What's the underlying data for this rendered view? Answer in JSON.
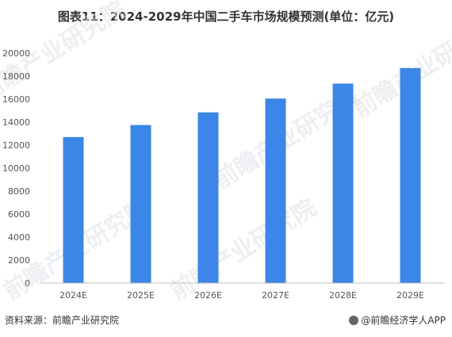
{
  "title": "图表11：2024-2029年中国二手车市场规模预测(单位：亿元)",
  "watermark": "前瞻产业研究院",
  "footer": {
    "source": "资料来源：前瞻产业研究院",
    "brand": "@前瞻经济学人APP"
  },
  "colors": {
    "bar": "#3b86e6",
    "axis": "#bfbfbf",
    "tick_text": "#555555"
  },
  "chart_data": {
    "type": "bar",
    "title": "图表11：2024-2029年中国二手车市场规模预测(单位：亿元)",
    "categories": [
      "2024E",
      "2025E",
      "2026E",
      "2027E",
      "2028E",
      "2029E"
    ],
    "values": [
      12700,
      13750,
      14850,
      16050,
      17350,
      18700
    ],
    "ylim": [
      0,
      20000
    ],
    "yticks": [
      0,
      2000,
      4000,
      6000,
      8000,
      10000,
      12000,
      14000,
      16000,
      18000,
      20000
    ],
    "grid": false,
    "xlabel": "",
    "ylabel": ""
  }
}
